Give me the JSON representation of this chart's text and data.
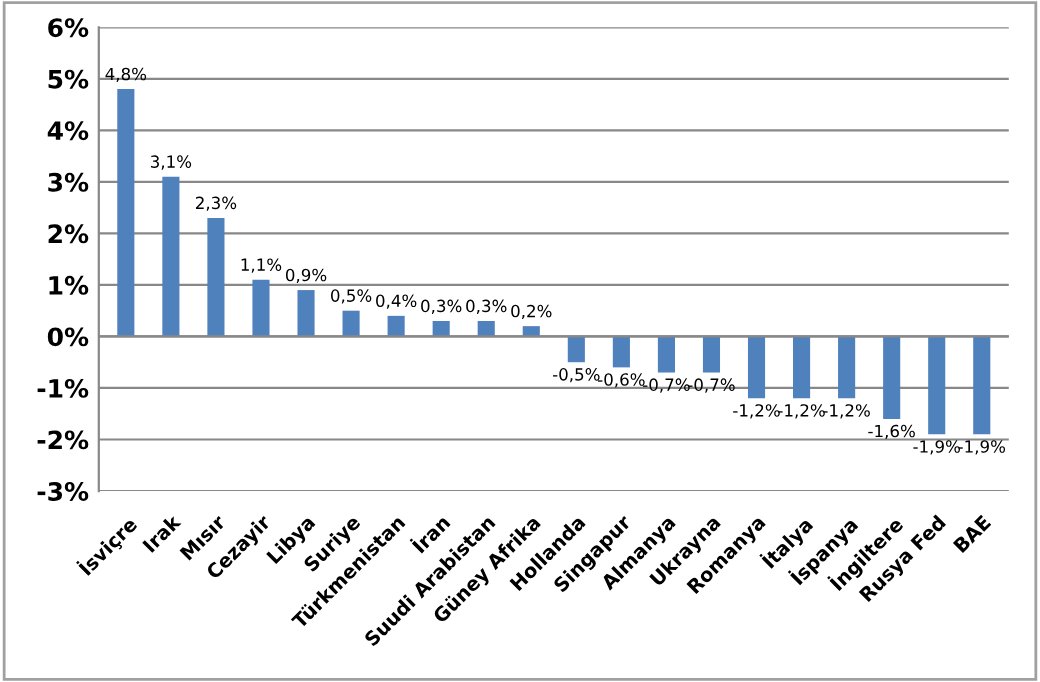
{
  "chart_data": {
    "type": "bar",
    "categories": [
      "İsviçre",
      "Irak",
      "Mısır",
      "Cezayir",
      "Libya",
      "Suriye",
      "Türkmenistan",
      "İran",
      "Suudi Arabistan",
      "Güney Afrika",
      "Hollanda",
      "Singapur",
      "Almanya",
      "Ukrayna",
      "Romanya",
      "İtalya",
      "İspanya",
      "İngiltere",
      "Rusya Fed",
      "BAE"
    ],
    "values": [
      4.8,
      3.1,
      2.3,
      1.1,
      0.9,
      0.5,
      0.4,
      0.3,
      0.3,
      0.2,
      -0.5,
      -0.6,
      -0.7,
      -0.7,
      -1.2,
      -1.2,
      -1.2,
      -1.6,
      -1.9,
      -1.9
    ],
    "value_labels": [
      "4,8%",
      "3,1%",
      "2,3%",
      "1,1%",
      "0,9%",
      "0,5%",
      "0,4%",
      "0,3%",
      "0,3%",
      "0,2%",
      "-0,5%",
      "-0,6%",
      "-0,7%",
      "-0,7%",
      "-1,2%",
      "-1,2%",
      "-1,2%",
      "-1,6%",
      "-1,9%",
      "-1,9%"
    ],
    "color": "#4f81bd",
    "ylim": [
      -3,
      6
    ],
    "yticks": [
      {
        "value": -3,
        "label": "-3%"
      },
      {
        "value": -2,
        "label": "-2%"
      },
      {
        "value": -1,
        "label": "-1%"
      },
      {
        "value": 0,
        "label": "0%"
      },
      {
        "value": 1,
        "label": "1%"
      },
      {
        "value": 2,
        "label": "2%"
      },
      {
        "value": 3,
        "label": "3%"
      },
      {
        "value": 4,
        "label": "4%"
      },
      {
        "value": 5,
        "label": "5%"
      },
      {
        "value": 6,
        "label": "6%"
      }
    ],
    "grid": "y",
    "legend": false
  }
}
